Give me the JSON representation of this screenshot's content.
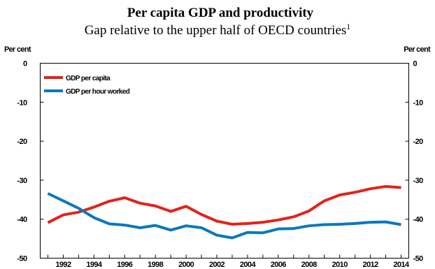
{
  "chart_data": {
    "type": "line",
    "title": "Per capita GDP and productivity",
    "subtitle": "Gap relative to the upper half of OECD countries",
    "subtitle_footnote": "1",
    "ylabel_left": "Per cent",
    "ylabel_right": "Per cent",
    "xlabel": "",
    "ylim": [
      -50,
      0
    ],
    "xlim": [
      1990.5,
      2014.5
    ],
    "y_ticks": [
      0,
      -10,
      -20,
      -30,
      -40,
      -50
    ],
    "x_tick_labels": [
      "1992",
      "1994",
      "1996",
      "1998",
      "2000",
      "2002",
      "2004",
      "2006",
      "2008",
      "2010",
      "2012",
      "2014"
    ],
    "grid": false,
    "legend_position": "top-left",
    "x": [
      1991,
      1992,
      1993,
      1994,
      1995,
      1996,
      1997,
      1998,
      1999,
      2000,
      2001,
      2002,
      2003,
      2004,
      2005,
      2006,
      2007,
      2008,
      2009,
      2010,
      2011,
      2012,
      2013,
      2014
    ],
    "series": [
      {
        "name": "GDP per capita",
        "color": "#e2231a",
        "values": [
          -40.9,
          -38.9,
          -38.2,
          -36.9,
          -35.4,
          -34.5,
          -35.9,
          -36.6,
          -38.0,
          -36.7,
          -38.8,
          -40.5,
          -41.3,
          -41.1,
          -40.8,
          -40.2,
          -39.4,
          -37.9,
          -35.3,
          -33.8,
          -33.1,
          -32.2,
          -31.6,
          -31.9
        ]
      },
      {
        "name": "GDP per hour worked",
        "color": "#0b78bd",
        "values": [
          -33.4,
          -35.3,
          -37.2,
          -39.6,
          -41.2,
          -41.5,
          -42.2,
          -41.6,
          -42.8,
          -41.7,
          -42.2,
          -44.1,
          -44.8,
          -43.4,
          -43.5,
          -42.5,
          -42.4,
          -41.7,
          -41.4,
          -41.3,
          -41.1,
          -40.8,
          -40.7,
          -41.4
        ]
      }
    ]
  }
}
